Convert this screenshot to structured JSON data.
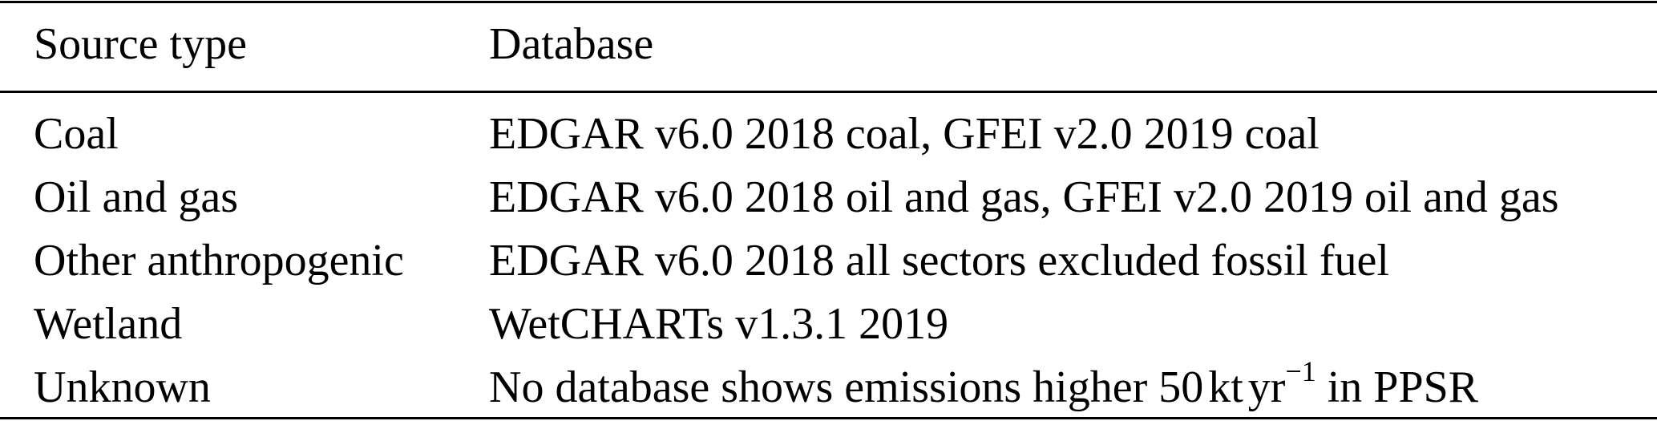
{
  "table": {
    "headers": [
      "Source type",
      "Database"
    ],
    "rows": [
      {
        "source": "Coal",
        "database": "EDGAR v6.0 2018 coal, GFEI v2.0 2019 coal"
      },
      {
        "source": "Oil and gas",
        "database": "EDGAR v6.0 2018 oil and gas, GFEI v2.0 2019 oil and gas"
      },
      {
        "source": "Other anthropogenic",
        "database": "EDGAR v6.0 2018 all sectors excluded fossil fuel"
      },
      {
        "source": "Wetland",
        "database": "WetCHARTs v1.3.1 2019"
      },
      {
        "source": "Unknown",
        "database_pre": "No database shows emissions higher 50",
        "database_unit1": "kt",
        "database_unit2": "yr",
        "database_exp": "−1",
        "database_post": " in PPSR"
      }
    ]
  }
}
